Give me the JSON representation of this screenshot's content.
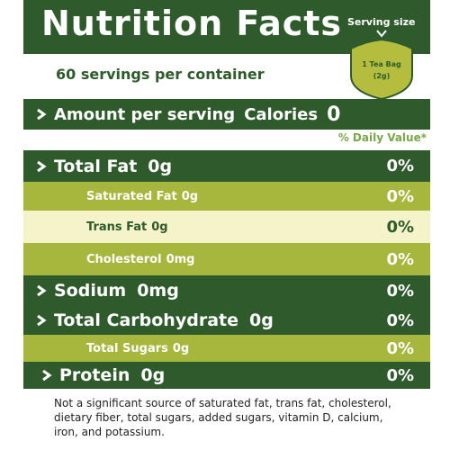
{
  "header": {
    "title": "Nutrition Facts",
    "serving_size_label": "Serving size",
    "serving_size_lines": [
      "1 Tea Bag",
      "(2g)"
    ]
  },
  "servings": "60 servings per container",
  "amount_per_serving": "Amount per serving",
  "calories": {
    "label": "Calories",
    "value": "0"
  },
  "daily_value_header": "% Daily Value*",
  "rows": [
    {
      "name": "Total Fat",
      "amount": "0g",
      "dv": "0%"
    },
    {
      "name": "Saturated Fat",
      "amount": "0g",
      "dv": "0%"
    },
    {
      "name": "Trans Fat",
      "amount": "0g",
      "dv": "0%"
    },
    {
      "name": "Cholesterol",
      "amount": "0mg",
      "dv": "0%"
    },
    {
      "name": "Sodium",
      "amount": "0mg",
      "dv": "0%"
    },
    {
      "name": "Total Carbohydrate",
      "amount": "0g",
      "dv": "0%"
    },
    {
      "name": "Total Sugars",
      "amount": "0g",
      "dv": "0%"
    },
    {
      "name": "Protein",
      "amount": "0g",
      "dv": "0%"
    }
  ],
  "footnote_lines": [
    "Not a significant source of saturated fat, trans fat, cholesterol,",
    "dietary fiber, total sugars, added sugars, vitamin D, calcium,",
    "iron, and potassium."
  ]
}
